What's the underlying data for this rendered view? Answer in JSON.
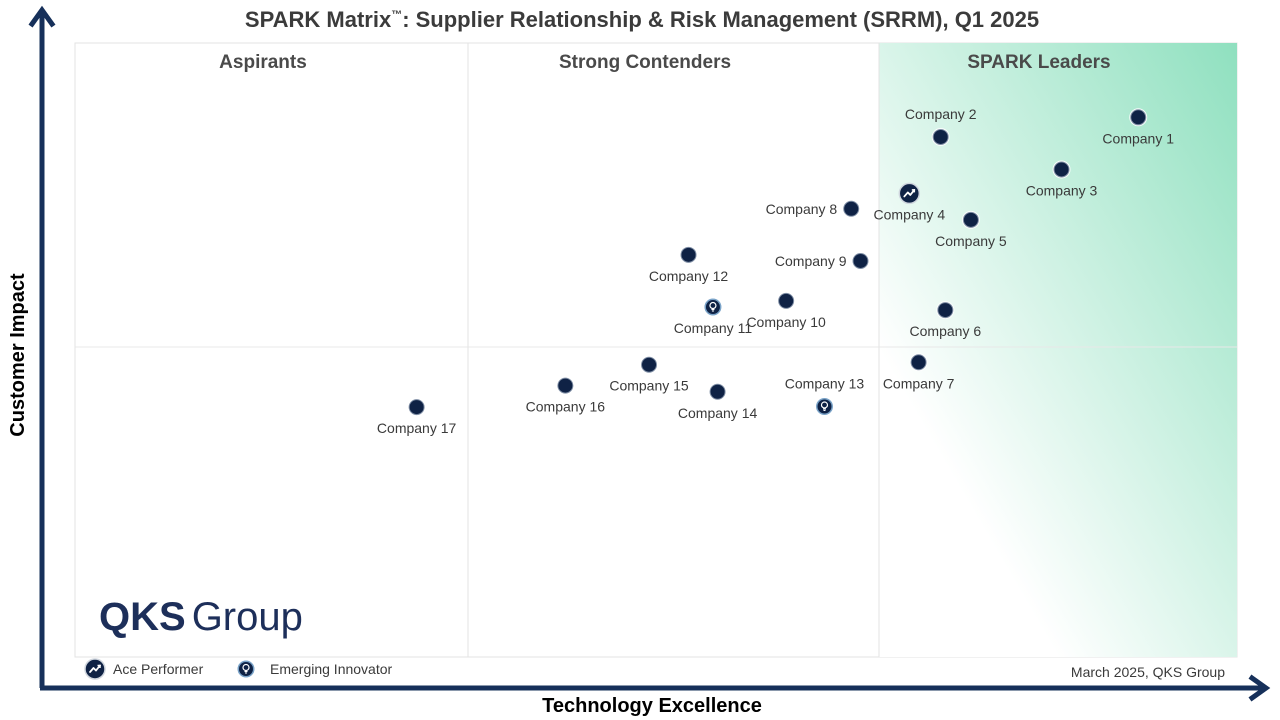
{
  "header": {
    "title_main": "SPARK Matrix",
    "title_tm": "™",
    "title_rest": ": Supplier Relationship & Risk Management (SRRM), Q1 2025"
  },
  "quadrants": {
    "aspirants": "Aspirants",
    "strong_contenders": "Strong Contenders",
    "leaders": "SPARK Leaders"
  },
  "axes": {
    "x_label": "Technology Excellence",
    "y_label": "Customer Impact"
  },
  "legend": {
    "ace_performer": "Ace Performer",
    "emerging_innovator": "Emerging Innovator"
  },
  "footer": {
    "date_source": "March 2025, QKS Group"
  },
  "logo": {
    "bold": "QKS",
    "light": "Group"
  },
  "colors": {
    "dot": "#0f2245",
    "axis": "#16305a",
    "leaders_gradient": "#8fe0bf",
    "innovator_ring": "#7aa3c8"
  },
  "chart_data": {
    "type": "scatter",
    "title": "SPARK Matrix™: Supplier Relationship & Risk Management (SRRM), Q1 2025",
    "xlabel": "Technology Excellence",
    "ylabel": "Customer Impact",
    "xlim": [
      0,
      100
    ],
    "ylim": [
      0,
      100
    ],
    "grid": true,
    "points": [
      {
        "name": "Company 1",
        "x": 91.5,
        "y": 87.9,
        "marker": "dot",
        "label_pos": "below"
      },
      {
        "name": "Company 2",
        "x": 74.5,
        "y": 84.7,
        "marker": "dot",
        "label_pos": "above"
      },
      {
        "name": "Company 3",
        "x": 84.9,
        "y": 79.4,
        "marker": "dot",
        "label_pos": "below"
      },
      {
        "name": "Company 4",
        "x": 71.8,
        "y": 75.5,
        "marker": "ace",
        "label_pos": "below"
      },
      {
        "name": "Company 5",
        "x": 77.1,
        "y": 71.2,
        "marker": "dot",
        "label_pos": "below"
      },
      {
        "name": "Company 6",
        "x": 74.9,
        "y": 56.5,
        "marker": "dot",
        "label_pos": "below"
      },
      {
        "name": "Company 7",
        "x": 72.6,
        "y": 48.0,
        "marker": "dot",
        "label_pos": "below"
      },
      {
        "name": "Company 8",
        "x": 66.8,
        "y": 73.0,
        "marker": "dot",
        "label_pos": "left"
      },
      {
        "name": "Company 9",
        "x": 67.6,
        "y": 64.5,
        "marker": "dot",
        "label_pos": "left"
      },
      {
        "name": "Company 10",
        "x": 61.2,
        "y": 58.0,
        "marker": "dot",
        "label_pos": "below"
      },
      {
        "name": "Company 11",
        "x": 54.9,
        "y": 57.0,
        "marker": "innovator",
        "label_pos": "below"
      },
      {
        "name": "Company 12",
        "x": 52.8,
        "y": 65.5,
        "marker": "dot",
        "label_pos": "below"
      },
      {
        "name": "Company 13",
        "x": 64.5,
        "y": 40.8,
        "marker": "innovator",
        "label_pos": "above"
      },
      {
        "name": "Company 14",
        "x": 55.3,
        "y": 43.2,
        "marker": "dot",
        "label_pos": "below"
      },
      {
        "name": "Company 15",
        "x": 49.4,
        "y": 47.6,
        "marker": "dot",
        "label_pos": "below"
      },
      {
        "name": "Company 16",
        "x": 42.2,
        "y": 44.2,
        "marker": "dot",
        "label_pos": "below"
      },
      {
        "name": "Company 17",
        "x": 29.4,
        "y": 40.7,
        "marker": "dot",
        "label_pos": "below"
      }
    ]
  }
}
